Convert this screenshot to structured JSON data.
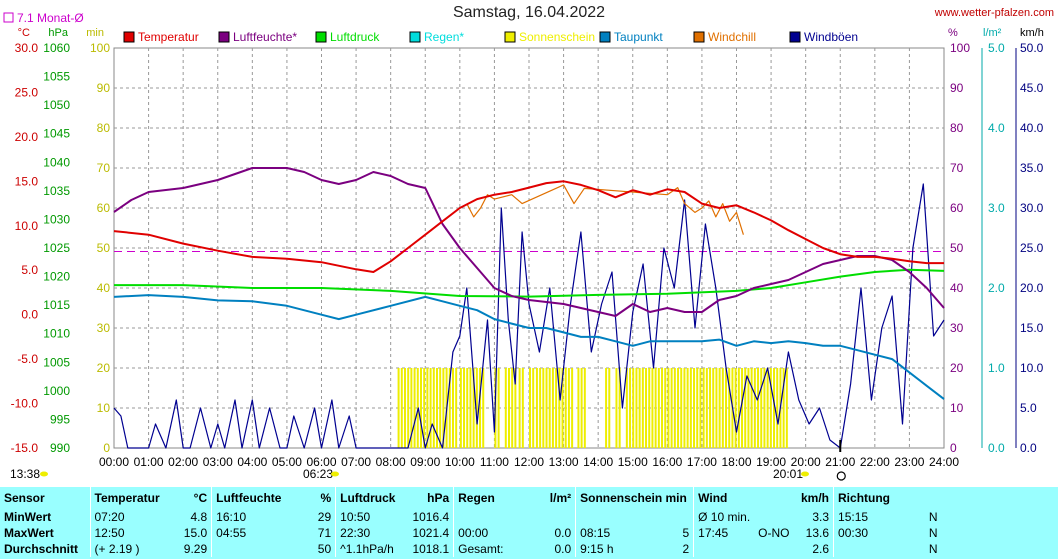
{
  "header": {
    "title": "Samstag, 16.04.2022",
    "site": "www.wetter-pfalzen.com",
    "monat_label": "7.1 Monat-Ø"
  },
  "colors": {
    "temperature": "#e00000",
    "humidity": "#7b0080",
    "pressure": "#00dd00",
    "rain": "#00dddd",
    "sunshine": "#eeee00",
    "dewpoint": "#0080c0",
    "windchill": "#e07000",
    "gust": "#000090",
    "monthly_avg": "#cc00cc",
    "table_bg": "#99ffff"
  },
  "chart_data": {
    "type": "line",
    "title": "Samstag, 16.04.2022",
    "x_unit": "hours",
    "x_range": [
      0,
      24
    ],
    "x_ticks": [
      "00:00",
      "01:00",
      "02:00",
      "03:00",
      "04:00",
      "05:00",
      "06:00",
      "07:00",
      "08:00",
      "09:00",
      "10:00",
      "11:00",
      "12:00",
      "13:00",
      "14:00",
      "15:00",
      "16:00",
      "17:00",
      "18:00",
      "19:00",
      "20:00",
      "21:00",
      "22:00",
      "23:00",
      "24:00"
    ],
    "axes": {
      "temp": {
        "unit": "°C",
        "range": [
          -15,
          30
        ],
        "ticks": [
          "30.0",
          "25.0",
          "20.0",
          "15.0",
          "10.0",
          "5.0",
          "0.0",
          "-5.0",
          "-10.0",
          "-15.0"
        ]
      },
      "pressure": {
        "unit": "hPa",
        "range": [
          990,
          1060
        ],
        "ticks": [
          "1060",
          "1055",
          "1050",
          "1045",
          "1040",
          "1035",
          "1030",
          "1025",
          "1020",
          "1015",
          "1010",
          "1005",
          "1000",
          "995",
          "990"
        ]
      },
      "sun_min": {
        "unit": "min",
        "range": [
          0,
          100
        ],
        "ticks": [
          "100",
          "90",
          "80",
          "70",
          "60",
          "50",
          "40",
          "30",
          "20",
          "10",
          "0"
        ]
      },
      "humidity": {
        "unit": "%",
        "range": [
          0,
          100
        ],
        "ticks": [
          "100",
          "90",
          "80",
          "70",
          "60",
          "50",
          "40",
          "30",
          "20",
          "10",
          "0"
        ]
      },
      "rain": {
        "unit": "l/m²",
        "range": [
          0,
          5
        ],
        "ticks": [
          "5.0",
          "4.0",
          "3.0",
          "2.0",
          "1.0",
          "0.0"
        ]
      },
      "wind": {
        "unit": "km/h",
        "range": [
          0,
          50
        ],
        "ticks": [
          "50.0",
          "45.0",
          "40.0",
          "35.0",
          "30.0",
          "25.0",
          "20.0",
          "15.0",
          "10.0",
          "5.0",
          "0.0"
        ]
      }
    },
    "monthly_avg_temp": 7.1,
    "sunrise": "06:23",
    "sunset": "20:01",
    "day_length": "13:38",
    "legend": [
      {
        "name": "Temperatur",
        "color": "#e00000"
      },
      {
        "name": "Luftfeuchte*",
        "color": "#7b0080"
      },
      {
        "name": "Luftdruck",
        "color": "#00dd00"
      },
      {
        "name": "Regen*",
        "color": "#00dddd"
      },
      {
        "name": "Sonnenschein",
        "color": "#eeee00"
      },
      {
        "name": "Taupunkt",
        "color": "#0080c0"
      },
      {
        "name": "Windchill",
        "color": "#e07000"
      },
      {
        "name": "Windböen",
        "color": "#000090"
      }
    ],
    "series": [
      {
        "name": "Temperatur",
        "axis": "temp",
        "x": [
          0,
          1,
          2,
          3,
          4,
          5,
          6,
          7,
          7.5,
          8,
          8.5,
          9,
          9.5,
          10,
          10.5,
          11,
          11.5,
          12,
          12.5,
          13,
          13.5,
          14,
          14.5,
          15,
          15.5,
          16,
          16.5,
          17,
          17.5,
          18,
          18.5,
          19,
          19.5,
          20,
          20.5,
          21,
          21.5,
          22,
          22.5,
          23,
          23.5,
          24
        ],
        "values": [
          9.4,
          9.0,
          8.0,
          7.2,
          6.5,
          6.3,
          5.9,
          5.1,
          4.8,
          6.0,
          7.5,
          9.0,
          10.5,
          12.0,
          13.0,
          13.5,
          13.8,
          14.3,
          14.8,
          15.0,
          14.6,
          14.0,
          13.2,
          14.0,
          13.5,
          14.1,
          13.8,
          12.5,
          12.0,
          12.3,
          11.5,
          10.6,
          9.5,
          8.5,
          7.5,
          6.8,
          6.5,
          6.5,
          6.3,
          6.0,
          5.8,
          5.8
        ]
      },
      {
        "name": "Luftfeuchte*",
        "axis": "humidity",
        "x": [
          0,
          0.5,
          1,
          2,
          3,
          4,
          5,
          5.5,
          6,
          6.5,
          7,
          7.5,
          8,
          8.5,
          9,
          9.5,
          10,
          10.5,
          11,
          11.5,
          12,
          13,
          14,
          14.5,
          15,
          15.5,
          16,
          16.5,
          17,
          17.5,
          18,
          18.5,
          19,
          19.5,
          20,
          20.5,
          21,
          21.5,
          22,
          22.5,
          23,
          23.5,
          24
        ],
        "values": [
          59,
          62,
          64,
          65,
          67,
          70,
          70,
          69,
          67,
          66,
          67,
          69,
          68,
          66,
          65,
          56,
          50,
          45,
          40,
          38,
          37,
          36,
          34,
          33,
          36,
          34,
          35,
          34,
          34,
          37,
          38,
          40,
          41,
          42,
          44,
          46,
          47,
          48,
          48,
          47,
          44,
          40,
          35
        ]
      },
      {
        "name": "Luftdruck",
        "axis": "pressure",
        "x": [
          0,
          2,
          4,
          6,
          8,
          10,
          12,
          14,
          16,
          18,
          19,
          20,
          21,
          22,
          23,
          24
        ],
        "values": [
          1018.5,
          1018.5,
          1018.0,
          1018.0,
          1017.5,
          1016.6,
          1016.5,
          1016.8,
          1017.0,
          1017.5,
          1018.0,
          1019.0,
          1020.0,
          1020.8,
          1021.2,
          1021.0
        ]
      },
      {
        "name": "Taupunkt",
        "axis": "temp",
        "x": [
          0,
          1,
          2,
          3,
          4,
          5,
          6,
          6.5,
          7,
          8,
          9,
          9.5,
          10,
          10.5,
          11,
          11.5,
          12,
          12.5,
          13,
          13.5,
          14,
          14.5,
          15,
          15.5,
          16,
          16.5,
          17,
          17.5,
          18,
          18.5,
          19,
          19.5,
          20,
          20.5,
          21,
          21.5,
          22,
          22.5,
          23,
          23.5,
          24
        ],
        "values": [
          2.0,
          2.2,
          2.0,
          1.6,
          1.5,
          1.0,
          0.0,
          -0.5,
          0.0,
          1.0,
          2.0,
          1.5,
          1.0,
          0.5,
          -0.5,
          -1.0,
          -1.5,
          -1.5,
          -2.0,
          -2.5,
          -2.5,
          -3.0,
          -3.5,
          -3.0,
          -3.0,
          -3.0,
          -3.0,
          -2.8,
          -3.5,
          -3.0,
          -3.2,
          -3.0,
          -3.2,
          -3.5,
          -3.5,
          -4.0,
          -4.5,
          -5.0,
          -6.5,
          -8.0,
          -9.5
        ]
      },
      {
        "name": "Windchill",
        "axis": "temp",
        "x": [
          10.2,
          10.4,
          10.6,
          10.8,
          11.0,
          11.5,
          11.8,
          13.0,
          13.3,
          13.6,
          16.0,
          16.3,
          16.5,
          16.8,
          17.0,
          17.2,
          17.4,
          17.6,
          17.8,
          18.0,
          18.2
        ],
        "values": [
          12.5,
          11.0,
          12.0,
          13.5,
          13.0,
          13.5,
          12.5,
          14.6,
          12.5,
          14.2,
          13.5,
          14.3,
          12.5,
          11.5,
          12.0,
          12.8,
          11.0,
          12.5,
          10.5,
          11.5,
          9.0
        ]
      },
      {
        "name": "Windböen",
        "axis": "wind",
        "x": [
          0,
          0.2,
          0.4,
          0.6,
          1.0,
          1.2,
          1.5,
          1.8,
          2.0,
          2.2,
          2.5,
          2.8,
          3.0,
          3.2,
          3.5,
          3.7,
          4.0,
          4.2,
          4.5,
          4.8,
          5.0,
          5.2,
          5.5,
          5.8,
          6.0,
          6.3,
          6.5,
          6.8,
          7.0,
          7.5,
          8.0,
          8.5,
          8.8,
          9.0,
          9.2,
          9.5,
          9.8,
          10.0,
          10.2,
          10.5,
          10.8,
          11.0,
          11.2,
          11.4,
          11.6,
          11.8,
          12.0,
          12.3,
          12.6,
          12.9,
          13.2,
          13.5,
          13.8,
          14.1,
          14.4,
          14.7,
          15.0,
          15.3,
          15.6,
          15.9,
          16.2,
          16.5,
          16.8,
          17.1,
          17.4,
          17.7,
          18.0,
          18.3,
          18.6,
          18.9,
          19.2,
          19.5,
          19.8,
          20.1,
          20.4,
          20.7,
          21.0,
          21.3,
          21.6,
          21.9,
          22.2,
          22.5,
          22.8,
          23.1,
          23.4,
          23.7,
          24
        ],
        "values": [
          5,
          4,
          0,
          0,
          0,
          3,
          0,
          6,
          0,
          0,
          5,
          0,
          3,
          0,
          6,
          0,
          6,
          0,
          5,
          0,
          0,
          4,
          0,
          5,
          0,
          6,
          0,
          4,
          0,
          0,
          0,
          0,
          5,
          0,
          3,
          0,
          12,
          14,
          20,
          3,
          16,
          2,
          30,
          16,
          8,
          27,
          18,
          12,
          20,
          6,
          18,
          27,
          12,
          18,
          22,
          5,
          17,
          23,
          10,
          25,
          20,
          31,
          15,
          28,
          20,
          10,
          2,
          9,
          6,
          10,
          3,
          12,
          6,
          3,
          5,
          1,
          0,
          8,
          20,
          6,
          15,
          19,
          3,
          25,
          33,
          14,
          16
        ]
      },
      {
        "name": "Sonnenschein",
        "axis": "sun_min",
        "x_ranges": [
          [
            8.2,
            9.9
          ],
          [
            10.0,
            10.7
          ],
          [
            11.0,
            11.1
          ],
          [
            11.3,
            11.6
          ],
          [
            11.7,
            11.8
          ],
          [
            12.0,
            12.1
          ],
          [
            12.2,
            13.3
          ],
          [
            13.4,
            13.6
          ],
          [
            14.2,
            14.3
          ],
          [
            14.5,
            14.6
          ],
          [
            14.8,
            19.5
          ]
        ],
        "values": [
          5,
          5,
          5,
          5,
          5,
          5,
          5,
          5,
          5,
          5,
          5
        ]
      }
    ]
  },
  "table": {
    "headers": {
      "sensor": "Sensor",
      "temperatur": "Temperatur",
      "temp_unit": "°C",
      "luftfeuchte": "Luftfeuchte",
      "lf_unit": "%",
      "luftdruck": "Luftdruck",
      "ld_unit": "hPa",
      "regen": "Regen",
      "regen_unit": "l/m²",
      "sonne": "Sonnenschein min",
      "wind": "Wind",
      "wind_unit": "km/h",
      "richtung": "Richtung"
    },
    "rows": [
      {
        "label": "MinWert",
        "temp_time": "07:20",
        "temp_val": "4.8",
        "lf_time": "16:10",
        "lf_val": "29",
        "ld_time": "10:50",
        "ld_val": "1016.4",
        "regen_time": "",
        "regen_val": "",
        "sonne_time": "",
        "sonne_val": "",
        "wind_label": "Ø 10 min.",
        "wind_dir": "",
        "wind_val": "3.3",
        "richt_time": "15:15",
        "richt_val": "N"
      },
      {
        "label": "MaxWert",
        "temp_time": "12:50",
        "temp_val": "15.0",
        "lf_time": "04:55",
        "lf_val": "71",
        "ld_time": "22:30",
        "ld_val": "1021.4",
        "regen_time": "00:00",
        "regen_val": "0.0",
        "sonne_time": "08:15",
        "sonne_val": "5",
        "wind_label": "17:45",
        "wind_dir": "O-NO",
        "wind_val": "13.6",
        "richt_time": "00:30",
        "richt_val": "N"
      },
      {
        "label": "Durchschnitt",
        "temp_time": "(+ 2.19 )",
        "temp_val": "9.29",
        "lf_time": "",
        "lf_val": "50",
        "ld_time": "^1.1hPa/h",
        "ld_val": "1018.1",
        "regen_time": "Gesamt:",
        "regen_val": "0.0",
        "sonne_time": "9:15 h",
        "sonne_val": "2",
        "wind_label": "",
        "wind_dir": "",
        "wind_val": "2.6",
        "richt_time": "",
        "richt_val": "N"
      }
    ]
  }
}
